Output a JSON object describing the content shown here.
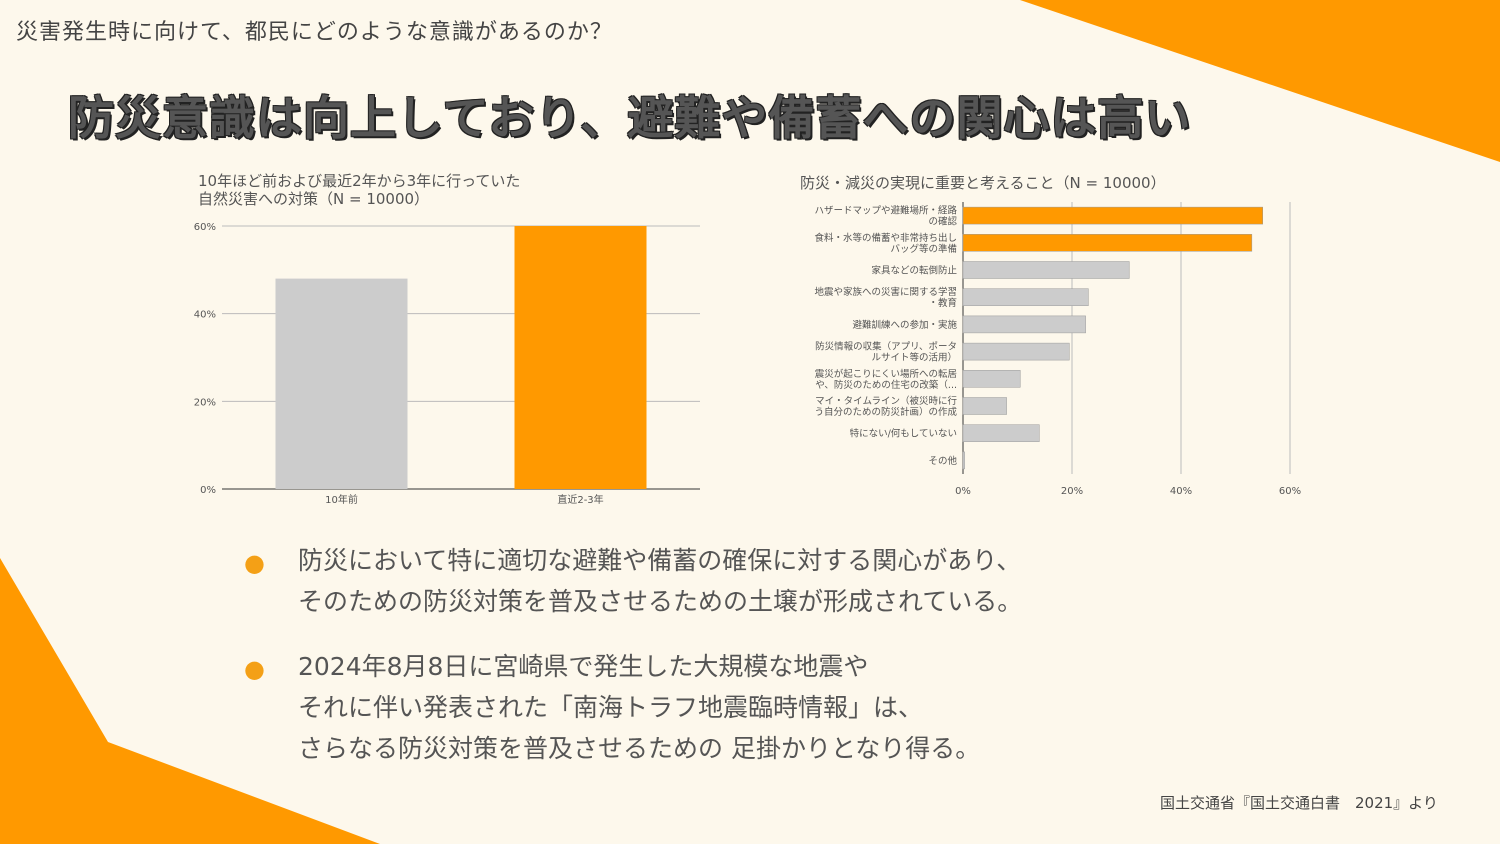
{
  "header": {
    "subtitle": "災害発生時に向けて、都民にどのような意識があるのか？",
    "title": "防災意識は向上しており、避難や備蓄への関心は高い"
  },
  "colors": {
    "accent": "#ff9900",
    "bar_gray": "#cccccc",
    "bg": "#fdf8ec"
  },
  "chart_data": [
    {
      "type": "bar",
      "title_line1": "10年ほど前および最近2年から3年に行っていた",
      "title_line2": "自然災害への対策（N = 10000）",
      "categories": [
        "10年前",
        "直近2-3年"
      ],
      "values": [
        48,
        60
      ],
      "ylim": [
        0,
        60
      ],
      "yticks": [
        "0%",
        "20%",
        "40%",
        "60%"
      ],
      "ytick_values": [
        0,
        20,
        40,
        60
      ],
      "colors": [
        "#cccccc",
        "#ff9900"
      ]
    },
    {
      "type": "bar",
      "orientation": "horizontal",
      "title": "防災・減災の実現に重要と考えること（N = 10000）",
      "categories": [
        [
          "ハザードマップや避難場所・経路",
          "の確認"
        ],
        [
          "食料・水等の備蓄や非常持ち出し",
          "バッグ等の準備"
        ],
        [
          "家具などの転倒防止"
        ],
        [
          "地震や家族への災害に関する学習",
          "・教育"
        ],
        [
          "避難訓練への参加・実施"
        ],
        [
          "防災情報の収集（アプリ、ポータ",
          "ルサイト等の活用）"
        ],
        [
          "震災が起こりにくい場所への転居",
          "や、防災のための住宅の改築（..."
        ],
        [
          "マイ・タイムライン（被災時に行",
          "う自分のための防災計画）の作成"
        ],
        [
          "特にない/何もしていない"
        ],
        [
          "その他"
        ]
      ],
      "values": [
        55,
        53,
        30.5,
        23,
        22.5,
        19.5,
        10.5,
        8,
        14,
        0.3
      ],
      "xlim": [
        0,
        60
      ],
      "xticks": [
        "0%",
        "20%",
        "40%",
        "60%"
      ],
      "xtick_values": [
        0,
        20,
        40,
        60
      ],
      "colors": [
        "#ff9900",
        "#ff9900",
        "#cccccc",
        "#cccccc",
        "#cccccc",
        "#cccccc",
        "#cccccc",
        "#cccccc",
        "#cccccc",
        "#cccccc"
      ]
    }
  ],
  "bullets": [
    {
      "line1": "防災において特に適切な避難や備蓄の確保に対する関心があり、",
      "line2": "そのための防災対策を普及させるための土壌が形成されている。"
    },
    {
      "line1": "2024年8月8日に宮崎県で発生した大規模な地震や",
      "line2": "それに伴い発表された「南海トラフ地震臨時情報」は、",
      "line3": "さらなる防災対策を普及させるための 足掛かりとなり得る。"
    }
  ],
  "bullet_symbol": "●",
  "source": "国土交通省『国土交通白書　2021』より"
}
